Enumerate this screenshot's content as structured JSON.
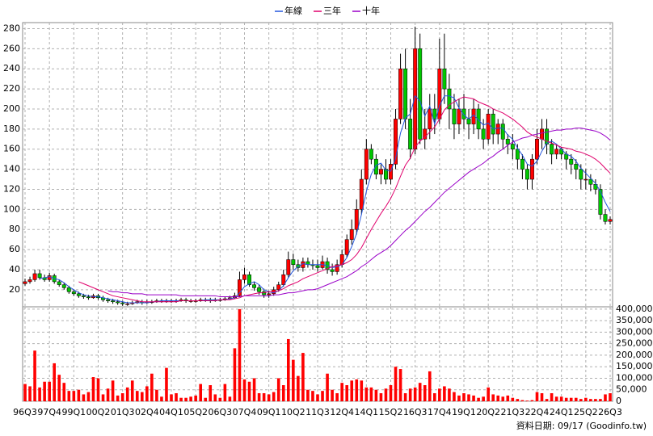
{
  "chart_data": [
    {
      "type": "candlestick",
      "categories": [
        "96Q3",
        null,
        null,
        null,
        null,
        "97Q4",
        null,
        null,
        null,
        null,
        "99Q1",
        null,
        null,
        null,
        null,
        "00Q2",
        null,
        null,
        null,
        null,
        "01Q3",
        null,
        null,
        null,
        null,
        "02Q4",
        null,
        null,
        null,
        null,
        "04Q1",
        null,
        null,
        null,
        null,
        "05Q2",
        null,
        null,
        null,
        null,
        "06Q3",
        null,
        null,
        null,
        null,
        "07Q4",
        null,
        null,
        null,
        null,
        "09Q1",
        null,
        null,
        null,
        null,
        "10Q2",
        null,
        null,
        null,
        null,
        "11Q3",
        null,
        null,
        null,
        null,
        "12Q4",
        null,
        null,
        null,
        null,
        "14Q1",
        null,
        null,
        null,
        null,
        "15Q2",
        null,
        null,
        null,
        null,
        "16Q3",
        null,
        null,
        null,
        null,
        "17Q4",
        null,
        null,
        null,
        null,
        "19Q1",
        null,
        null,
        null,
        null,
        "20Q2",
        null,
        null,
        null,
        null,
        "21Q3",
        null,
        null,
        null,
        null,
        "22Q4",
        null,
        null,
        null,
        null,
        "24Q1",
        null,
        null,
        null,
        null,
        "25Q2",
        null,
        null,
        null,
        null,
        "26Q3"
      ],
      "open": [
        26,
        28,
        30,
        36,
        32,
        30,
        34,
        28,
        25,
        22,
        18,
        16,
        14,
        13,
        12,
        14,
        12,
        10,
        9,
        8,
        7,
        6,
        6,
        7,
        8,
        7,
        8,
        8,
        9,
        9,
        9,
        9,
        9,
        10,
        9,
        9,
        9,
        10,
        10,
        9,
        10,
        10,
        11,
        12,
        14,
        30,
        35,
        25,
        22,
        18,
        15,
        16,
        20,
        25,
        35,
        50,
        45,
        42,
        48,
        45,
        44,
        42,
        48,
        40,
        38,
        45,
        55,
        70,
        80,
        100,
        130,
        160,
        150,
        135,
        140,
        130,
        145,
        190,
        240,
        190,
        160,
        260,
        170,
        180,
        200,
        190,
        240,
        220,
        200,
        185,
        200,
        190,
        185,
        200,
        180,
        170,
        195,
        175,
        185,
        170,
        165,
        160,
        150,
        140,
        130,
        150,
        170,
        180,
        165,
        155,
        160,
        155,
        150,
        145,
        140,
        130,
        130,
        125,
        120,
        95,
        88
      ],
      "high": [
        31,
        33,
        40,
        40,
        35,
        37,
        36,
        30,
        27,
        24,
        20,
        18,
        16,
        15,
        16,
        16,
        14,
        12,
        11,
        10,
        9,
        8,
        9,
        10,
        10,
        10,
        10,
        11,
        11,
        11,
        11,
        11,
        12,
        12,
        11,
        11,
        12,
        12,
        12,
        12,
        12,
        13,
        14,
        17,
        38,
        42,
        38,
        28,
        25,
        21,
        19,
        23,
        28,
        40,
        58,
        56,
        50,
        52,
        52,
        50,
        50,
        54,
        52,
        46,
        50,
        60,
        75,
        90,
        110,
        140,
        170,
        165,
        155,
        145,
        150,
        150,
        200,
        255,
        260,
        210,
        282,
        275,
        200,
        215,
        215,
        270,
        275,
        235,
        215,
        210,
        215,
        200,
        210,
        205,
        190,
        200,
        200,
        190,
        190,
        175,
        175,
        165,
        155,
        145,
        155,
        180,
        190,
        190,
        170,
        165,
        162,
        158,
        155,
        150,
        145,
        140,
        135,
        130,
        125,
        100,
        93
      ],
      "low": [
        24,
        26,
        28,
        30,
        28,
        28,
        26,
        23,
        20,
        16,
        14,
        12,
        11,
        10,
        11,
        10,
        8,
        7,
        6,
        5,
        4,
        4,
        5,
        6,
        5,
        6,
        6,
        7,
        7,
        7,
        7,
        7,
        8,
        7,
        7,
        7,
        8,
        8,
        7,
        8,
        8,
        9,
        10,
        11,
        13,
        26,
        23,
        19,
        15,
        12,
        12,
        14,
        18,
        23,
        32,
        40,
        38,
        38,
        42,
        40,
        38,
        40,
        36,
        34,
        35,
        42,
        52,
        65,
        75,
        95,
        125,
        145,
        130,
        125,
        125,
        125,
        140,
        185,
        180,
        150,
        155,
        165,
        160,
        170,
        175,
        185,
        205,
        180,
        170,
        175,
        180,
        170,
        175,
        170,
        160,
        165,
        165,
        165,
        160,
        155,
        150,
        140,
        130,
        120,
        120,
        145,
        160,
        155,
        145,
        150,
        150,
        140,
        135,
        130,
        120,
        120,
        118,
        115,
        90,
        85,
        85
      ],
      "close": [
        28,
        30,
        36,
        32,
        30,
        34,
        28,
        25,
        22,
        18,
        16,
        14,
        13,
        12,
        14,
        12,
        10,
        9,
        8,
        7,
        6,
        6,
        7,
        8,
        7,
        8,
        8,
        9,
        9,
        9,
        9,
        9,
        10,
        9,
        9,
        9,
        10,
        10,
        9,
        10,
        10,
        11,
        12,
        14,
        30,
        35,
        25,
        22,
        18,
        15,
        16,
        20,
        25,
        35,
        50,
        45,
        42,
        48,
        45,
        44,
        42,
        48,
        40,
        38,
        45,
        55,
        70,
        80,
        100,
        130,
        160,
        150,
        135,
        140,
        130,
        145,
        190,
        240,
        190,
        160,
        260,
        170,
        180,
        200,
        190,
        240,
        220,
        200,
        185,
        200,
        190,
        185,
        200,
        180,
        170,
        195,
        175,
        185,
        170,
        165,
        160,
        150,
        140,
        130,
        150,
        170,
        180,
        165,
        155,
        160,
        155,
        150,
        145,
        140,
        130,
        130,
        125,
        120,
        95,
        88,
        90
      ],
      "up_color": "#ff0000",
      "down_color": "#00c800",
      "ylim": [
        3,
        286
      ],
      "yticks": [
        20,
        40,
        60,
        80,
        100,
        120,
        140,
        160,
        180,
        200,
        220,
        240,
        260,
        280
      ],
      "grid": true,
      "legend": "top",
      "series": [
        {
          "name": "年線",
          "color": "#2255dd",
          "values": [
            null,
            null,
            null,
            31,
            32,
            33,
            31,
            30,
            27,
            23,
            20,
            17,
            15,
            14,
            13,
            13,
            12,
            11,
            10,
            9,
            8,
            7,
            7,
            7,
            7,
            7,
            8,
            8,
            9,
            9,
            9,
            9,
            9,
            9,
            9,
            9,
            9,
            10,
            10,
            10,
            10,
            10,
            11,
            12,
            17,
            23,
            26,
            28,
            25,
            20,
            18,
            17,
            19,
            24,
            32,
            39,
            43,
            46,
            45,
            45,
            45,
            45,
            44,
            42,
            43,
            45,
            52,
            63,
            76,
            95,
            118,
            135,
            144,
            146,
            139,
            138,
            151,
            176,
            191,
            195,
            213,
            208,
            193,
            203,
            185,
            203,
            213,
            213,
            211,
            201,
            194,
            190,
            194,
            189,
            184,
            186,
            180,
            181,
            181,
            174,
            170,
            161,
            154,
            145,
            143,
            148,
            158,
            166,
            168,
            165,
            160,
            155,
            153,
            148,
            141,
            136,
            131,
            126,
            118,
            107,
            98
          ]
        },
        {
          "name": "三年",
          "color": "#e0006c",
          "values": [
            null,
            null,
            null,
            null,
            null,
            null,
            null,
            null,
            null,
            null,
            null,
            28,
            26,
            24,
            22,
            20,
            18,
            16,
            14,
            13,
            12,
            11,
            10,
            9,
            8,
            8,
            8,
            8,
            8,
            8,
            8,
            8,
            9,
            9,
            9,
            9,
            9,
            9,
            9,
            9,
            10,
            10,
            10,
            11,
            12,
            14,
            15,
            16,
            17,
            17,
            18,
            18,
            19,
            21,
            24,
            26,
            28,
            31,
            33,
            35,
            37,
            39,
            41,
            43,
            44,
            45,
            47,
            50,
            55,
            62,
            71,
            80,
            88,
            96,
            103,
            111,
            121,
            133,
            144,
            151,
            162,
            168,
            172,
            177,
            182,
            190,
            199,
            204,
            207,
            210,
            212,
            211,
            210,
            207,
            205,
            203,
            200,
            198,
            196,
            193,
            190,
            186,
            182,
            177,
            174,
            172,
            170,
            168,
            166,
            164,
            162,
            161,
            160,
            158,
            157,
            155,
            153,
            150,
            146,
            141,
            136
          ]
        },
        {
          "name": "十年",
          "color": "#9a00c8",
          "values": [
            null,
            null,
            null,
            null,
            null,
            null,
            null,
            null,
            null,
            null,
            null,
            null,
            null,
            null,
            null,
            null,
            null,
            19,
            18,
            18,
            17,
            17,
            16,
            16,
            16,
            15,
            15,
            15,
            15,
            15,
            15,
            15,
            14,
            14,
            14,
            14,
            14,
            14,
            14,
            14,
            13,
            13,
            13,
            13,
            13,
            14,
            14,
            14,
            14,
            14,
            14,
            15,
            15,
            16,
            17,
            17,
            18,
            19,
            20,
            20,
            21,
            23,
            25,
            27,
            29,
            31,
            33,
            36,
            39,
            43,
            46,
            50,
            54,
            57,
            60,
            64,
            69,
            74,
            79,
            83,
            88,
            93,
            98,
            102,
            107,
            112,
            117,
            121,
            125,
            129,
            133,
            137,
            140,
            143,
            146,
            150,
            153,
            157,
            160,
            164,
            167,
            169,
            171,
            172,
            174,
            175,
            176,
            177,
            178,
            179,
            179,
            180,
            180,
            181,
            181,
            180,
            179,
            178,
            176,
            173,
            169
          ]
        }
      ]
    },
    {
      "type": "bar",
      "color": "#ff0000",
      "values": [
        75000,
        65000,
        220000,
        60000,
        85000,
        85000,
        165000,
        115000,
        80000,
        45000,
        45000,
        50000,
        30000,
        40000,
        105000,
        100000,
        30000,
        55000,
        90000,
        25000,
        35000,
        60000,
        90000,
        45000,
        40000,
        65000,
        120000,
        50000,
        20000,
        145000,
        30000,
        35000,
        15000,
        15000,
        20000,
        25000,
        75000,
        15000,
        70000,
        30000,
        15000,
        75000,
        20000,
        230000,
        400000,
        95000,
        85000,
        100000,
        35000,
        35000,
        30000,
        40000,
        100000,
        70000,
        270000,
        180000,
        110000,
        210000,
        50000,
        45000,
        30000,
        45000,
        120000,
        50000,
        35000,
        80000,
        70000,
        90000,
        95000,
        90000,
        60000,
        60000,
        50000,
        35000,
        55000,
        70000,
        150000,
        140000,
        35000,
        55000,
        60000,
        80000,
        70000,
        130000,
        35000,
        55000,
        65000,
        55000,
        40000,
        25000,
        35000,
        30000,
        25000,
        15000,
        20000,
        60000,
        30000,
        25000,
        20000,
        25000,
        15000,
        10000,
        5000,
        3000,
        5000,
        40000,
        35000,
        10000,
        35000,
        20000,
        20000,
        15000,
        15000,
        15000,
        10000,
        15000,
        10000,
        10000,
        10000,
        30000,
        35000
      ],
      "ylim": [
        0,
        410000
      ],
      "yticks": [
        0,
        {
          "value": 50000,
          "label": "50,000"
        },
        {
          "value": 100000,
          "label": "100,000"
        },
        {
          "value": 150000,
          "label": "150,000"
        },
        {
          "value": 200000,
          "label": "200,000"
        },
        {
          "value": 250000,
          "label": "250,000"
        },
        {
          "value": 300000,
          "label": "300,000"
        },
        {
          "value": 350000,
          "label": "350,000"
        },
        {
          "value": 400000,
          "label": "400,000"
        }
      ],
      "grid": true,
      "source": "資料日期: 09/17 (Goodinfo.tw)"
    }
  ]
}
